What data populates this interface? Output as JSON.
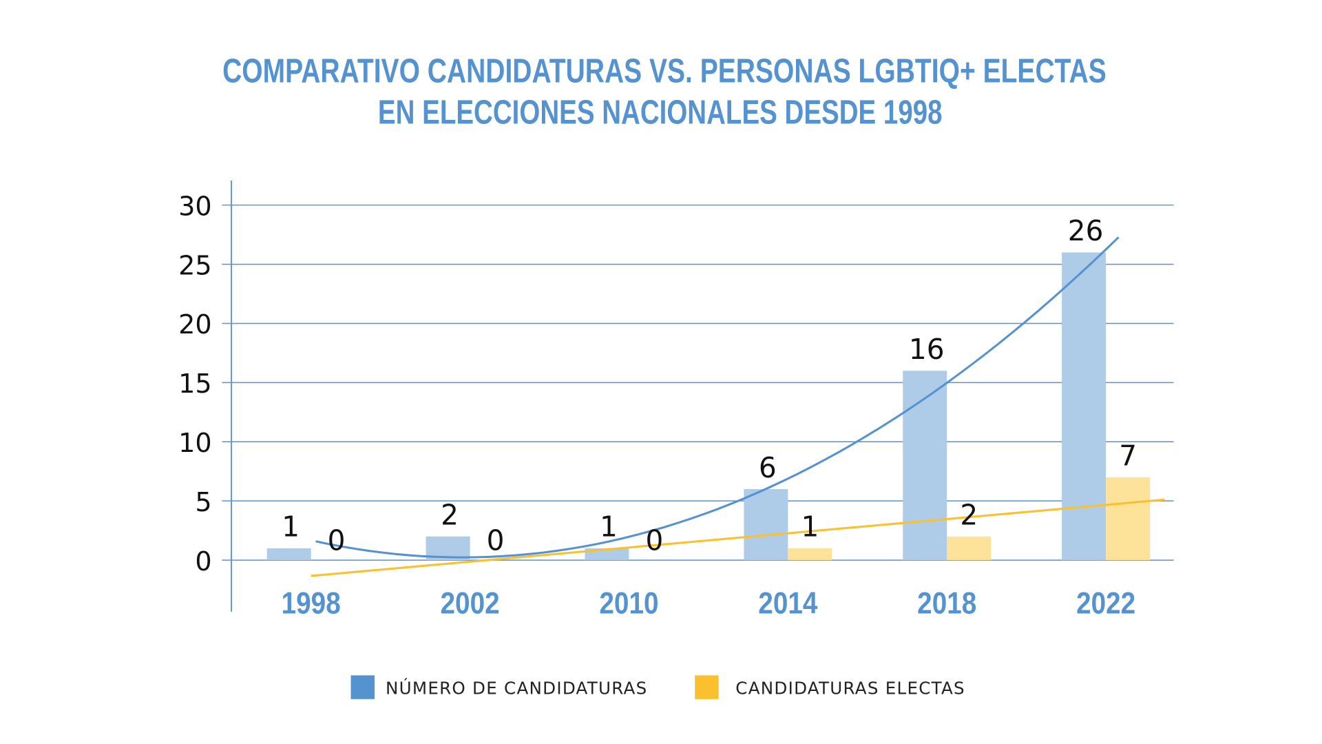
{
  "chart_data": {
    "type": "bar",
    "title_lines": [
      "COMPARATIVO CANDIDATURAS VS. PERSONAS LGBTIQ+ ELECTAS",
      "EN ELECCIONES NACIONALES DESDE 1998"
    ],
    "categories": [
      "1998",
      "2002",
      "2010",
      "2014",
      "2018",
      "2022"
    ],
    "series": [
      {
        "name": "NÚMERO DE CANDIDATURAS",
        "values": [
          1,
          2,
          1,
          6,
          16,
          26
        ],
        "color": "#aecbe8",
        "trend_color": "#5592d0",
        "trendline": "polynomial"
      },
      {
        "name": "CANDIDATURAS ELECTAS",
        "values": [
          0,
          0,
          0,
          1,
          2,
          7
        ],
        "color": "#fde39a",
        "trend_color": "#fbc02d",
        "trendline": "linear"
      }
    ],
    "legend_colors": [
      "#5592d0",
      "#fbc02d"
    ],
    "yticks": [
      "0",
      "5",
      "10",
      "15",
      "20",
      "25",
      "30"
    ],
    "ylim": [
      0,
      30
    ],
    "grid": true,
    "legend_position": "bottom",
    "xlabel": "",
    "ylabel": ""
  }
}
